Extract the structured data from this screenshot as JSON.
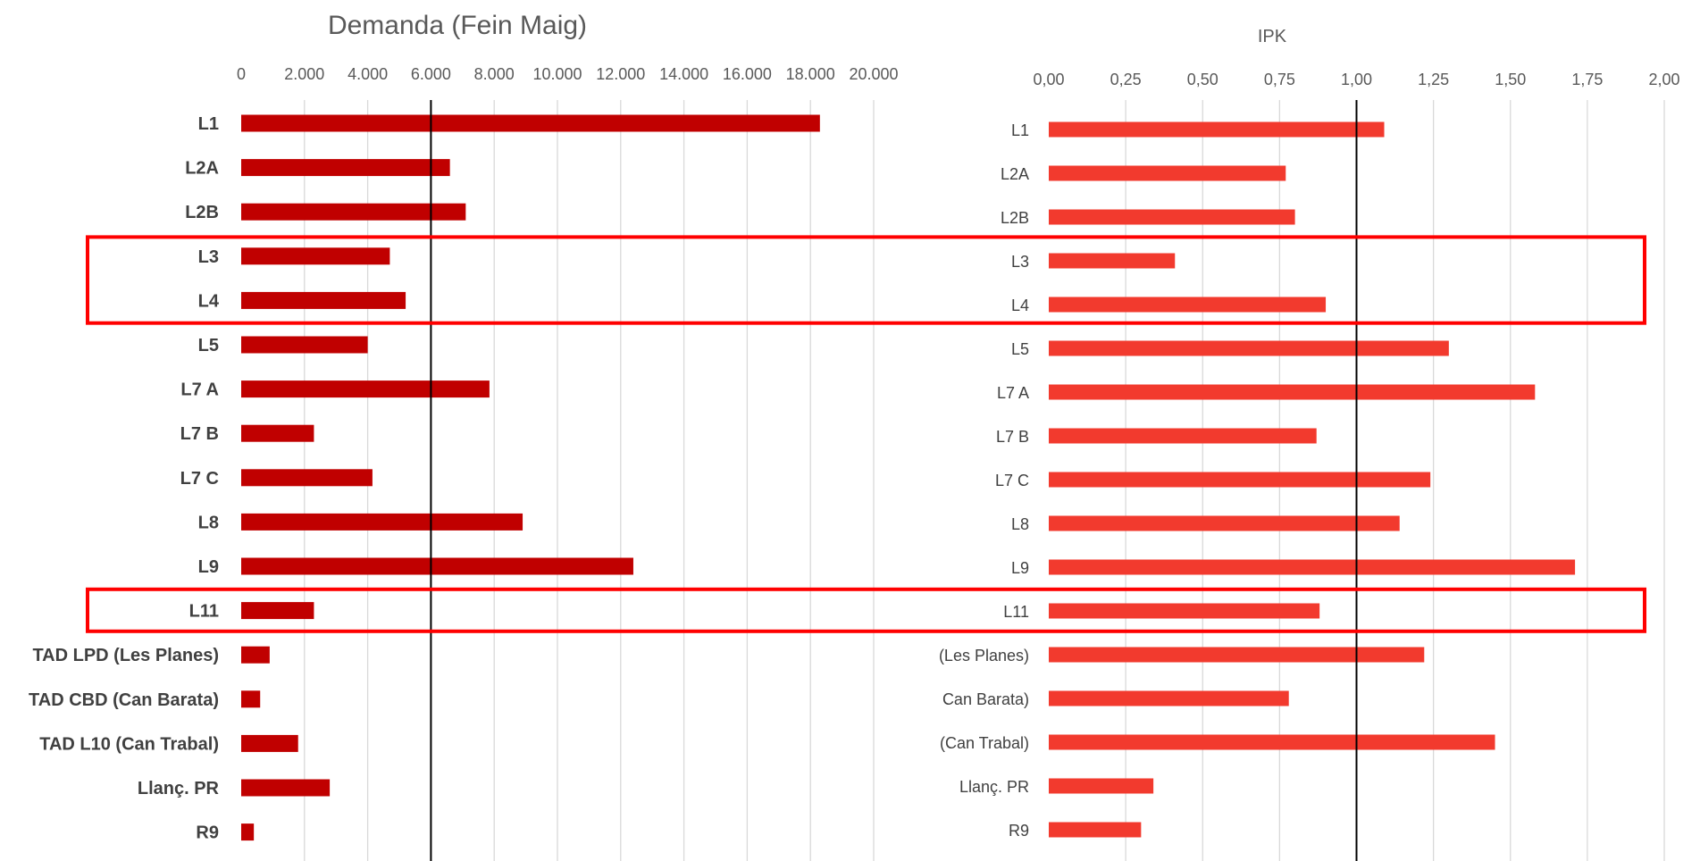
{
  "chart_data": [
    {
      "type": "bar",
      "orientation": "horizontal",
      "title": "Demanda (Fein Maig)",
      "categories": [
        "L1",
        "L2A",
        "L2B",
        "L3",
        "L4",
        "L5",
        "L7 A",
        "L7 B",
        "L7 C",
        "L8",
        "L9",
        "L11",
        "TAD LPD (Les Planes)",
        "TAD CBD (Can Barata)",
        "TAD L10 (Can Trabal)",
        "Llanç. PR",
        "R9"
      ],
      "values": [
        18300,
        6600,
        7100,
        4700,
        5200,
        4000,
        7850,
        2300,
        4150,
        8900,
        12400,
        2300,
        900,
        600,
        1800,
        2800,
        400
      ],
      "xticks": [
        "0",
        "2.000",
        "4.000",
        "6.000",
        "8.000",
        "10.000",
        "12.000",
        "14.000",
        "16.000",
        "18.000",
        "20.000"
      ],
      "xlim": [
        0,
        20000
      ],
      "reference_line": 6000,
      "grid": true,
      "axis_position": "top",
      "bar_color": "#C00000"
    },
    {
      "type": "bar",
      "orientation": "horizontal",
      "title": "IPK",
      "categories": [
        "L1",
        "L2A",
        "L2B",
        "L3",
        "L4",
        "L5",
        "L7 A",
        "L7 B",
        "L7 C",
        "L8",
        "L9",
        "L11",
        "(Les Planes)",
        "Can Barata)",
        "(Can Trabal)",
        "Llanç. PR",
        "R9"
      ],
      "values": [
        1.09,
        0.77,
        0.8,
        0.41,
        0.9,
        1.3,
        1.58,
        0.87,
        1.24,
        1.14,
        1.71,
        0.88,
        1.22,
        0.78,
        1.45,
        0.34,
        0.3
      ],
      "xticks": [
        "0,00",
        "0,25",
        "0,50",
        "0,75",
        "1,00",
        "1,25",
        "1,50",
        "1,75",
        "2,00"
      ],
      "xlim": [
        0,
        2
      ],
      "reference_line": 1.0,
      "grid": true,
      "axis_position": "top",
      "bar_color": "#F23A2E"
    }
  ],
  "highlight_color": "#FF0000",
  "highlight_groups": [
    [
      "L3",
      "L4"
    ],
    [
      "L11"
    ]
  ]
}
